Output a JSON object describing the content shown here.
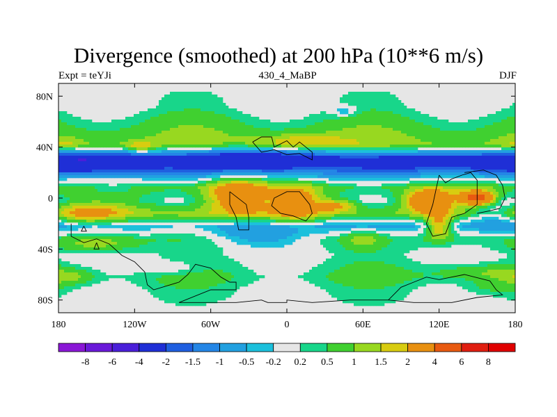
{
  "chart_data": {
    "type": "heatmap",
    "title": "Divergence (smoothed) at 200 hPa (10**6 m/s)",
    "subtitle_left": "Expt = teYJi",
    "subtitle_center": "430_4_MaBP",
    "subtitle_right": "DJF",
    "x_ticks": [
      {
        "value": -180,
        "label": "180"
      },
      {
        "value": -120,
        "label": "120W"
      },
      {
        "value": -60,
        "label": "60W"
      },
      {
        "value": 0,
        "label": "0"
      },
      {
        "value": 60,
        "label": "60E"
      },
      {
        "value": 120,
        "label": "120E"
      },
      {
        "value": 180,
        "label": "180"
      }
    ],
    "y_ticks": [
      {
        "value": 80,
        "label": "80N"
      },
      {
        "value": 40,
        "label": "40N"
      },
      {
        "value": 0,
        "label": "0"
      },
      {
        "value": -40,
        "label": "40S"
      },
      {
        "value": -80,
        "label": "80S"
      }
    ],
    "xlim": [
      -180,
      180
    ],
    "ylim": [
      -90,
      90
    ],
    "colorbar": {
      "levels": [
        "-8",
        "-6",
        "-4",
        "-2",
        "-1.5",
        "-1",
        "-0.5",
        "-0.2",
        "0.2",
        "0.5",
        "1",
        "1.5",
        "2",
        "4",
        "6",
        "8"
      ],
      "colors": [
        "#8a17d6",
        "#6a19d9",
        "#4a1fd9",
        "#1f2fd6",
        "#1f5fe0",
        "#2486e6",
        "#22a0e0",
        "#1cc0dc",
        "#e6e6e6",
        "#18d68a",
        "#40d030",
        "#98d820",
        "#d8cc10",
        "#e89010",
        "#e85a10",
        "#e01e10",
        "#e00000"
      ]
    },
    "bands": [
      {
        "lat": 72,
        "value": 0.1
      },
      {
        "lat": 56,
        "value": 0.7
      },
      {
        "lat": 42,
        "value": 1.2
      },
      {
        "lat": 30,
        "value": -1.6
      },
      {
        "lat": 20,
        "value": -0.8
      },
      {
        "lat": 8,
        "value": 0.8
      },
      {
        "lat": -2,
        "value": 0.3
      },
      {
        "lat": -12,
        "value": 1.1
      },
      {
        "lat": -22,
        "value": -0.6
      },
      {
        "lat": -32,
        "value": 0.4
      },
      {
        "lat": -45,
        "value": 0.1
      },
      {
        "lat": -62,
        "value": 0.5
      },
      {
        "lat": -72,
        "value": 0.2
      },
      {
        "lat": -82,
        "value": 0.1
      }
    ],
    "features": [
      {
        "lon": -160,
        "lat": 28,
        "rlon": 55,
        "rlat": 8,
        "value": -2.5
      },
      {
        "lon": -30,
        "lat": 30,
        "rlon": 60,
        "rlat": 10,
        "value": -2.0
      },
      {
        "lon": 90,
        "lat": 28,
        "rlon": 60,
        "rlat": 8,
        "value": -1.2
      },
      {
        "lon": -115,
        "lat": 40,
        "rlon": 12,
        "rlat": 4,
        "value": 1.2
      },
      {
        "lon": 10,
        "lat": 44,
        "rlon": 35,
        "rlat": 6,
        "value": 1.2
      },
      {
        "lon": 45,
        "lat": 68,
        "rlon": 10,
        "rlat": 4,
        "value": -0.8
      },
      {
        "lon": -40,
        "lat": 2,
        "rlon": 25,
        "rlat": 14,
        "value": 2.6
      },
      {
        "lon": 8,
        "lat": -4,
        "rlon": 18,
        "rlat": 12,
        "value": 2.4
      },
      {
        "lon": 112,
        "lat": -2,
        "rlon": 18,
        "rlat": 8,
        "value": 3.4
      },
      {
        "lon": 150,
        "lat": 0,
        "rlon": 12,
        "rlat": 5,
        "value": 5.0
      },
      {
        "lon": -165,
        "lat": -12,
        "rlon": 35,
        "rlat": 8,
        "value": 1.6
      },
      {
        "lon": 40,
        "lat": -6,
        "rlon": 15,
        "rlat": 5,
        "value": 1.7
      },
      {
        "lon": -140,
        "lat": 8,
        "rlon": 25,
        "rlat": 5,
        "value": -0.7
      },
      {
        "lon": -20,
        "lat": -30,
        "rlon": 35,
        "rlat": 8,
        "value": -1.1
      },
      {
        "lon": 120,
        "lat": -22,
        "rlon": 10,
        "rlat": 10,
        "value": 2.2
      },
      {
        "lon": 165,
        "lat": -12,
        "rlon": 25,
        "rlat": 10,
        "value": -1.6
      },
      {
        "lon": -150,
        "lat": -36,
        "rlon": 30,
        "rlat": 6,
        "value": 1.0
      },
      {
        "lon": -80,
        "lat": -20,
        "rlon": 25,
        "rlat": 10,
        "value": 0.6
      },
      {
        "lon": 60,
        "lat": -32,
        "rlon": 15,
        "rlat": 8,
        "value": 0.9
      },
      {
        "lon": -90,
        "lat": -55,
        "rlon": 25,
        "rlat": 6,
        "value": -0.6
      },
      {
        "lon": -170,
        "lat": -62,
        "rlon": 20,
        "rlat": 6,
        "value": 0.8
      },
      {
        "lon": 150,
        "lat": -58,
        "rlon": 35,
        "rlat": 6,
        "value": 0.8
      },
      {
        "lon": -175,
        "lat": 42,
        "rlon": 15,
        "rlat": 5,
        "value": 0.6
      },
      {
        "lon": 160,
        "lat": -70,
        "rlon": 25,
        "rlat": 6,
        "value": 0.5
      }
    ],
    "coastlines": [
      [
        [
          -170,
          -20
        ],
        [
          -170,
          -30
        ],
        [
          -160,
          -35
        ],
        [
          -150,
          -32
        ],
        [
          -140,
          -36
        ],
        [
          -130,
          -45
        ],
        [
          -120,
          -50
        ],
        [
          -112,
          -58
        ],
        [
          -110,
          -68
        ],
        [
          -105,
          -72
        ],
        [
          -85,
          -66
        ],
        [
          -78,
          -60
        ],
        [
          -72,
          -52
        ],
        [
          -60,
          -55
        ],
        [
          -52,
          -62
        ],
        [
          -45,
          -66
        ],
        [
          -40,
          -66
        ],
        [
          -40,
          -72
        ],
        [
          -60,
          -72
        ],
        [
          -85,
          -82
        ],
        [
          -40,
          -82
        ],
        [
          -20,
          -80
        ],
        [
          -15,
          -82
        ],
        [
          0,
          -82
        ],
        [
          0,
          -80
        ],
        [
          20,
          -82
        ],
        [
          50,
          -80
        ],
        [
          80,
          -80
        ],
        [
          90,
          -70
        ],
        [
          100,
          -66
        ],
        [
          110,
          -62
        ],
        [
          120,
          -64
        ],
        [
          140,
          -60
        ],
        [
          160,
          -65
        ],
        [
          165,
          -72
        ],
        [
          170,
          -76
        ],
        [
          150,
          -78
        ],
        [
          130,
          -82
        ],
        [
          100,
          -82
        ],
        [
          80,
          -80
        ]
      ],
      [
        [
          -27,
          44
        ],
        [
          -20,
          48
        ],
        [
          -12,
          48
        ],
        [
          -10,
          40
        ],
        [
          0,
          45
        ],
        [
          5,
          40
        ],
        [
          10,
          44
        ],
        [
          15,
          40
        ],
        [
          20,
          36
        ],
        [
          20,
          30
        ],
        [
          10,
          35
        ],
        [
          0,
          34
        ],
        [
          -10,
          38
        ],
        [
          -20,
          36
        ],
        [
          -27,
          44
        ]
      ],
      [
        [
          -45,
          5
        ],
        [
          -45,
          -5
        ],
        [
          -40,
          -15
        ],
        [
          -38,
          -25
        ],
        [
          -30,
          -25
        ],
        [
          -30,
          -15
        ],
        [
          -32,
          -5
        ],
        [
          -45,
          5
        ]
      ],
      [
        [
          -10,
          0
        ],
        [
          0,
          5
        ],
        [
          10,
          5
        ],
        [
          18,
          -5
        ],
        [
          20,
          -12
        ],
        [
          15,
          -18
        ],
        [
          5,
          -14
        ],
        [
          -5,
          -12
        ],
        [
          -12,
          -6
        ],
        [
          -10,
          0
        ]
      ],
      [
        [
          120,
          18
        ],
        [
          125,
          12
        ],
        [
          130,
          15
        ],
        [
          138,
          18
        ],
        [
          145,
          20
        ],
        [
          150,
          14
        ],
        [
          150,
          -5
        ],
        [
          140,
          -12
        ],
        [
          130,
          -15
        ],
        [
          125,
          -28
        ],
        [
          115,
          -30
        ],
        [
          110,
          -20
        ],
        [
          115,
          -5
        ],
        [
          120,
          18
        ]
      ],
      [
        [
          140,
          20
        ],
        [
          155,
          22
        ],
        [
          165,
          18
        ],
        [
          170,
          10
        ],
        [
          172,
          0
        ],
        [
          168,
          -8
        ],
        [
          160,
          -10
        ],
        [
          150,
          -12
        ]
      ],
      [
        [
          -150,
          -35
        ],
        [
          -148,
          -40
        ],
        [
          -152,
          -40
        ],
        [
          -150,
          -35
        ]
      ],
      [
        [
          -160,
          -22
        ],
        [
          -158,
          -26
        ],
        [
          -162,
          -26
        ],
        [
          -160,
          -22
        ]
      ]
    ]
  }
}
